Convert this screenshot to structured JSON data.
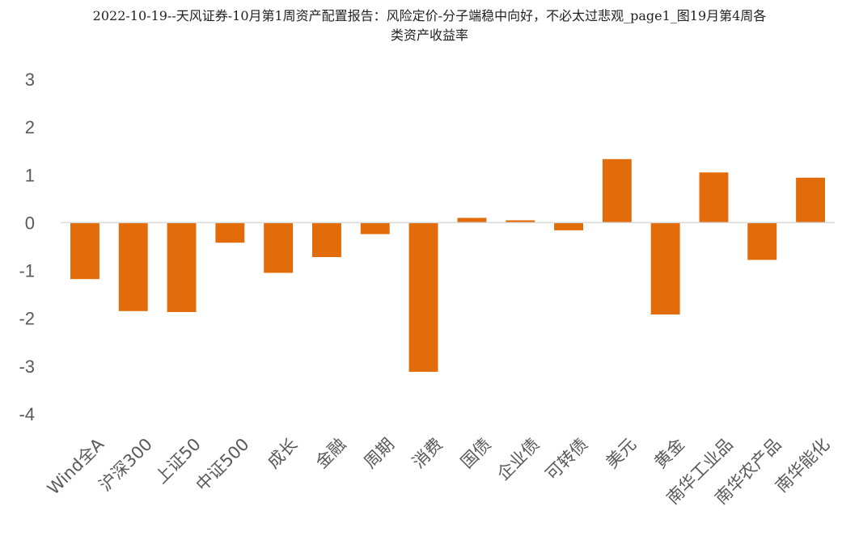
{
  "chart_data": {
    "type": "bar",
    "title_line1": "2022-10-19--天风证券-10月第1周资产配置报告：风险定价-分子端稳中向好，不必太过悲观_page1_图19月第4周各",
    "title_line2": "类资产收益率",
    "categories": [
      "Wind全A",
      "沪深300",
      "上证50",
      "中证500",
      "成长",
      "金融",
      "周期",
      "消费",
      "国债",
      "企业债",
      "可转债",
      "美元",
      "黄金",
      "南华工业品",
      "南华农产品",
      "南华能化"
    ],
    "values": [
      -1.18,
      -1.85,
      -1.87,
      -0.42,
      -1.05,
      -0.72,
      -0.24,
      -3.12,
      0.1,
      0.05,
      -0.16,
      1.33,
      -1.92,
      1.05,
      -0.78,
      0.94
    ],
    "ylim": [
      -4,
      3
    ],
    "yticks": [
      3,
      2,
      1,
      0,
      -1,
      -2,
      -3,
      -4
    ],
    "bar_color": "#E36C0A",
    "grid": false,
    "legend": "none"
  }
}
